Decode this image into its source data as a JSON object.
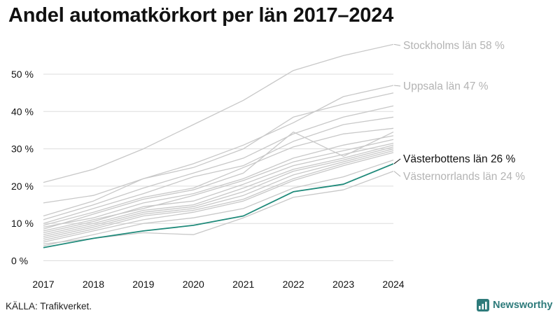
{
  "title": "Andel automatkörkort per län 2017–2024",
  "source": "KÄLLA: Trafikverket.",
  "brand": {
    "name": "Newsworthy",
    "icon": "newsworthy-logo-icon"
  },
  "colors": {
    "background": "#ffffff",
    "grid": "#dddddd",
    "gray_line": "#c8c8c8",
    "highlight": "#1f8a7a",
    "label_gray": "#b3b3b3",
    "text": "#111111"
  },
  "chart_data": {
    "type": "line",
    "title": "Andel automatkörkort per län 2017–2024",
    "xlabel": "",
    "ylabel": "",
    "x": [
      "2017",
      "2018",
      "2019",
      "2020",
      "2021",
      "2022",
      "2023",
      "2024"
    ],
    "ylim": [
      0,
      60
    ],
    "yticks": [
      0,
      10,
      20,
      30,
      40,
      50
    ],
    "ytick_labels": [
      "0 %",
      "10 %",
      "20 %",
      "30 %",
      "40 %",
      "50 %"
    ],
    "grid": true,
    "highlight_series": "Västerbottens län",
    "series": [
      {
        "name": "Stockholms län",
        "label": "Stockholms län 58 %",
        "style": "labeled",
        "values": [
          21,
          24.5,
          30,
          36.5,
          43,
          51,
          55,
          58
        ]
      },
      {
        "name": "Uppsala län",
        "label": "Uppsala län 47 %",
        "style": "labeled",
        "values": [
          15.5,
          17.5,
          22,
          26,
          31,
          37,
          44,
          47
        ]
      },
      {
        "name": "Västerbottens län",
        "label": "Västerbottens län 26 %",
        "style": "highlight",
        "values": [
          3.5,
          6,
          8,
          9.5,
          12,
          18.5,
          20.5,
          26
        ]
      },
      {
        "name": "Västernorrlands län",
        "label": "Västernorrlands län 24 %",
        "style": "labeled",
        "values": [
          4.5,
          6,
          7.5,
          7,
          11.5,
          17,
          19,
          24
        ]
      },
      {
        "style": "plain",
        "values": [
          12,
          16,
          22,
          25,
          30,
          38.5,
          42,
          45
        ]
      },
      {
        "style": "plain",
        "values": [
          11,
          15,
          19.5,
          23.5,
          27.5,
          34,
          38.5,
          41.5
        ]
      },
      {
        "style": "plain",
        "values": [
          10,
          14,
          18,
          22.5,
          25.5,
          32,
          36.5,
          38.5
        ]
      },
      {
        "style": "plain",
        "values": [
          9.5,
          13,
          17,
          19.5,
          25,
          30.5,
          34,
          35.5
        ]
      },
      {
        "style": "plain",
        "values": [
          8.5,
          12.5,
          16.5,
          19,
          23.5,
          34.5,
          28,
          34.5
        ]
      },
      {
        "style": "plain",
        "values": [
          9,
          11.5,
          15.5,
          18,
          22,
          27.5,
          31,
          33.5
        ]
      },
      {
        "style": "plain",
        "values": [
          8,
          11,
          14,
          17.5,
          21.5,
          26.5,
          29.5,
          32.5
        ]
      },
      {
        "style": "plain",
        "values": [
          7.5,
          10.5,
          14.5,
          16,
          20.5,
          25.5,
          28.5,
          31.5
        ]
      },
      {
        "style": "plain",
        "values": [
          7,
          10,
          13.5,
          15,
          19.5,
          24.5,
          27.5,
          31
        ]
      },
      {
        "style": "plain",
        "values": [
          6.5,
          9.5,
          13,
          14.5,
          18.5,
          24,
          27,
          30.5
        ]
      },
      {
        "style": "plain",
        "values": [
          6,
          9,
          12.5,
          14,
          17.5,
          23,
          26.5,
          30
        ]
      },
      {
        "style": "plain",
        "values": [
          5.5,
          8.5,
          12,
          13.5,
          16.5,
          22,
          26,
          29.5
        ]
      },
      {
        "style": "plain",
        "values": [
          5,
          8,
          11,
          13,
          16,
          21.5,
          25.5,
          29
        ]
      },
      {
        "style": "plain",
        "values": [
          4,
          7,
          10,
          11.5,
          14,
          19.5,
          22.5,
          27
        ]
      }
    ]
  }
}
